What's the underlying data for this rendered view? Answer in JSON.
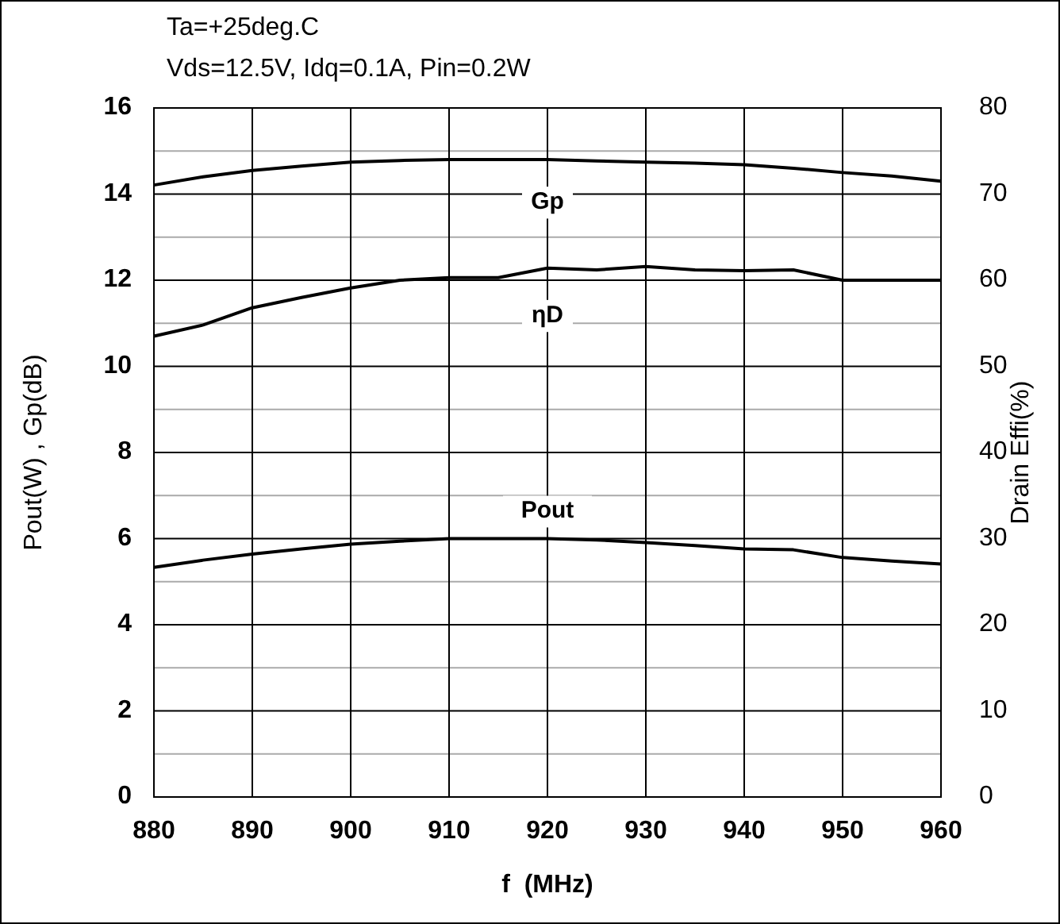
{
  "chart_data": {
    "type": "line",
    "title": "Ta=+25deg.C",
    "subtitle": "Vds=12.5V, Idq=0.1A, Pin=0.2W",
    "xlabel": "f  (MHz)",
    "ylabel": "Pout(W) , Gp(dB)",
    "y2label": "Drain Effi(%)",
    "x": [
      880,
      885,
      890,
      895,
      900,
      905,
      910,
      915,
      920,
      925,
      930,
      935,
      940,
      945,
      950,
      955,
      960
    ],
    "xlim": [
      880,
      960
    ],
    "xticks": [
      880,
      890,
      900,
      910,
      920,
      930,
      940,
      950,
      960
    ],
    "ylim": [
      0,
      16
    ],
    "yticks": [
      0,
      {
        "value": 1,
        "label": null
      },
      2,
      {
        "value": 3,
        "label": null
      },
      4,
      {
        "value": 5,
        "label": null
      },
      6,
      {
        "value": 7,
        "label": null
      },
      8,
      {
        "value": 9,
        "label": null
      },
      10,
      {
        "value": 11,
        "label": null
      },
      12,
      {
        "value": 13,
        "label": null
      },
      14,
      {
        "value": 15,
        "label": null
      },
      16
    ],
    "y2lim": [
      0,
      80
    ],
    "y2ticks": [
      0,
      10,
      20,
      30,
      40,
      50,
      60,
      70,
      80
    ],
    "grid": true,
    "marker": "none",
    "line_style": "solid",
    "series": [
      {
        "name": "Gp",
        "color": "#000000",
        "values": [
          14.21,
          14.4,
          14.55,
          14.65,
          14.74,
          14.78,
          14.8,
          14.8,
          14.8,
          14.77,
          14.74,
          14.72,
          14.68,
          14.6,
          14.5,
          14.42,
          14.3
        ]
      },
      {
        "name": "ηD",
        "color": "#000000",
        "axis": "y2",
        "values": [
          53.5,
          54.8,
          56.8,
          58,
          59.1,
          60,
          60.3,
          60.3,
          61.4,
          61.2,
          61.6,
          61.2,
          61.1,
          61.2,
          60,
          60,
          60
        ]
      },
      {
        "name": "Pout",
        "color": "#000000",
        "values": [
          5.33,
          5.5,
          5.64,
          5.76,
          5.87,
          5.94,
          6.0,
          6.0,
          6.0,
          5.97,
          5.91,
          5.84,
          5.76,
          5.74,
          5.56,
          5.48,
          5.41
        ]
      }
    ]
  }
}
